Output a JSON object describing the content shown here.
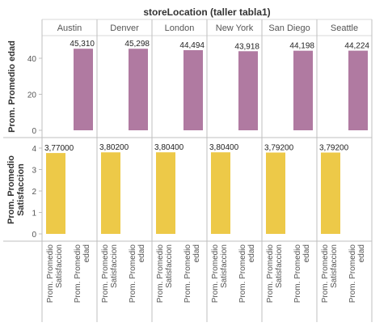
{
  "chart_data": {
    "type": "bar",
    "header_title": "storeLocation (taller tabla1)",
    "columns": [
      "Austin",
      "Denver",
      "London",
      "New York",
      "San Diego",
      "Seattle"
    ],
    "measures": [
      "Prom. Promedio Satisfaccion",
      "Prom. Promedio edad"
    ],
    "x_labels": [
      [
        "Prom. Promedio",
        "Satisfaccion"
      ],
      [
        "Prom. Promedio",
        "edad"
      ]
    ],
    "rows": [
      {
        "axis_title": "Prom. Promedio edad",
        "measure": "Prom. Promedio edad",
        "ticks": [
          "40",
          "20",
          "0"
        ],
        "tick_values": [
          40,
          20,
          0
        ],
        "ylim": [
          0,
          50
        ],
        "color": "#b07aa1",
        "values": [
          45.31,
          45.298,
          44.494,
          43.918,
          44.198,
          44.224
        ],
        "labels": [
          "45,310",
          "45,298",
          "44,494",
          "43,918",
          "44,198",
          "44,224"
        ]
      },
      {
        "axis_title_lines": [
          "Prom. Promedio",
          "Satisfaccion"
        ],
        "measure": "Prom. Promedio Satisfaccion",
        "ticks": [
          "4",
          "3",
          "2",
          "1",
          "0"
        ],
        "tick_values": [
          4,
          3,
          2,
          1,
          0
        ],
        "ylim": [
          0,
          4.1
        ],
        "color": "#edc948",
        "values": [
          3.77,
          3.802,
          3.804,
          3.804,
          3.792,
          3.792
        ],
        "labels": [
          "3,77000",
          "3,80200",
          "3,80400",
          "3,80400",
          "3,79200",
          "3,79200"
        ]
      }
    ]
  }
}
